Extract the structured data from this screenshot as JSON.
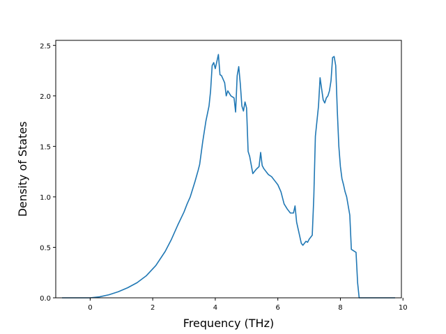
{
  "chart_data": {
    "type": "line",
    "title": "",
    "xlabel": "Frequency (THz)",
    "ylabel": "Density of States",
    "xlim": [
      -1.1,
      9.95
    ],
    "ylim": [
      0.0,
      2.55
    ],
    "xticks": [
      0,
      2,
      4,
      6,
      8,
      10
    ],
    "xtick_labels": [
      "0",
      "2",
      "4",
      "6",
      "8",
      "10"
    ],
    "yticks": [
      0.0,
      0.5,
      1.0,
      1.5,
      2.0,
      2.5
    ],
    "ytick_labels": [
      "0.0",
      "0.5",
      "1.0",
      "1.5",
      "2.0",
      "2.5"
    ],
    "grid": false,
    "legend": "none",
    "color": "#1f77b4",
    "series": [
      {
        "x": [
          -0.9,
          -0.5,
          0.0,
          0.3,
          0.6,
          0.9,
          1.2,
          1.5,
          1.8,
          2.1,
          2.4,
          2.6,
          2.8,
          3.0,
          3.1,
          3.2,
          3.35,
          3.45,
          3.5,
          3.6,
          3.7,
          3.8,
          3.85,
          3.9,
          3.95,
          4.0,
          4.05,
          4.1,
          4.15,
          4.2,
          4.3,
          4.35,
          4.4,
          4.5,
          4.6,
          4.65,
          4.7,
          4.75,
          4.8,
          4.85,
          4.9,
          4.95,
          5.0,
          5.05,
          5.1,
          5.2,
          5.3,
          5.4,
          5.45,
          5.5,
          5.55,
          5.6,
          5.7,
          5.8,
          5.9,
          6.0,
          6.1,
          6.2,
          6.3,
          6.4,
          6.5,
          6.55,
          6.6,
          6.65,
          6.7,
          6.75,
          6.8,
          6.9,
          6.95,
          7.0,
          7.1,
          7.15,
          7.2,
          7.3,
          7.35,
          7.45,
          7.5,
          7.55,
          7.6,
          7.65,
          7.7,
          7.75,
          7.8,
          7.85,
          7.9,
          7.95,
          8.0,
          8.05,
          8.1,
          8.15,
          8.2,
          8.3,
          8.35,
          8.4,
          8.5,
          8.55,
          8.6,
          8.7,
          8.75,
          8.8,
          8.85,
          9.0,
          9.75
        ],
        "y": [
          0.0,
          0.0,
          0.0,
          0.01,
          0.03,
          0.06,
          0.1,
          0.15,
          0.22,
          0.32,
          0.46,
          0.58,
          0.72,
          0.85,
          0.93,
          1.0,
          1.15,
          1.26,
          1.32,
          1.55,
          1.75,
          1.9,
          2.05,
          2.3,
          2.33,
          2.27,
          2.34,
          2.41,
          2.21,
          2.2,
          2.13,
          2.0,
          2.05,
          2.0,
          1.98,
          1.84,
          2.2,
          2.29,
          2.12,
          1.9,
          1.85,
          1.94,
          1.88,
          1.45,
          1.4,
          1.23,
          1.27,
          1.3,
          1.44,
          1.31,
          1.28,
          1.26,
          1.22,
          1.2,
          1.16,
          1.12,
          1.05,
          0.93,
          0.88,
          0.84,
          0.84,
          0.91,
          0.75,
          0.68,
          0.61,
          0.54,
          0.52,
          0.56,
          0.55,
          0.58,
          0.62,
          1.0,
          1.6,
          1.9,
          2.18,
          1.96,
          1.93,
          1.98,
          2.0,
          2.05,
          2.15,
          2.38,
          2.39,
          2.3,
          1.86,
          1.5,
          1.3,
          1.18,
          1.12,
          1.05,
          1.0,
          0.82,
          0.48,
          0.47,
          0.45,
          0.15,
          0.0,
          0.0,
          0.0,
          0.0,
          0.0,
          0.0,
          0.0
        ],
        "y_display_note": ""
      }
    ]
  }
}
